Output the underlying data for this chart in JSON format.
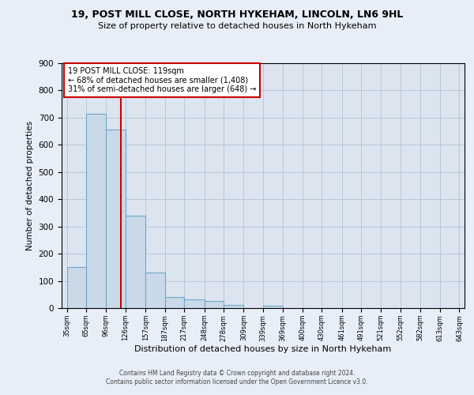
{
  "title1": "19, POST MILL CLOSE, NORTH HYKEHAM, LINCOLN, LN6 9HL",
  "title2": "Size of property relative to detached houses in North Hykeham",
  "xlabel": "Distribution of detached houses by size in North Hykeham",
  "ylabel": "Number of detached properties",
  "footer1": "Contains HM Land Registry data © Crown copyright and database right 2024.",
  "footer2": "Contains public sector information licensed under the Open Government Licence v3.0.",
  "annotation_line1": "19 POST MILL CLOSE: 119sqm",
  "annotation_line2": "← 68% of detached houses are smaller (1,408)",
  "annotation_line3": "31% of semi-detached houses are larger (648) →",
  "bar_edges": [
    35,
    65,
    96,
    126,
    157,
    187,
    217,
    248,
    278,
    309,
    339,
    369,
    400,
    430,
    461,
    491,
    521,
    552,
    582,
    613,
    643
  ],
  "bar_heights": [
    150,
    715,
    655,
    340,
    130,
    40,
    33,
    27,
    12,
    0,
    8,
    0,
    0,
    0,
    0,
    0,
    0,
    0,
    0,
    0
  ],
  "bar_color": "#c9d9e8",
  "bar_edgecolor": "#6fa8c8",
  "bar_linewidth": 0.8,
  "vline_x": 119,
  "vline_color": "#cc0000",
  "vline_linewidth": 1.5,
  "grid_color": "#b8c8d8",
  "background_color": "#e8eef8",
  "plot_bg_color": "#dce4f0",
  "ylim": [
    0,
    900
  ],
  "yticks": [
    0,
    100,
    200,
    300,
    400,
    500,
    600,
    700,
    800,
    900
  ]
}
